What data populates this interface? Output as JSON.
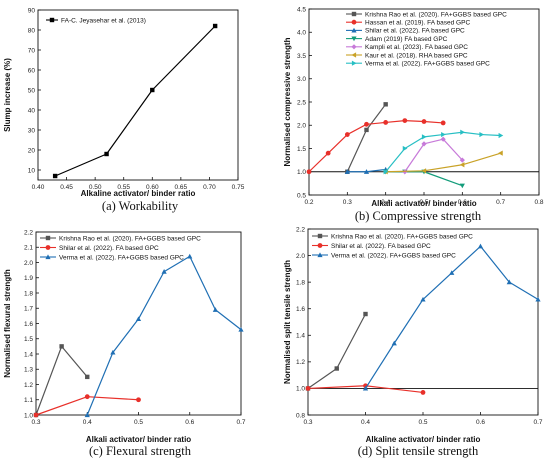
{
  "chart_data": [
    {
      "type": "line",
      "caption": "(a) Workability",
      "xlabel": "Alkaline activator/ binder ratio",
      "ylabel": "Slump increase (%)",
      "xlim": [
        0.4,
        0.75
      ],
      "ylim": [
        5,
        90
      ],
      "xticks": [
        "0.40",
        "0.45",
        "0.50",
        "0.55",
        "0.60",
        "0.65",
        "0.70",
        "0.75"
      ],
      "yticks": [
        "10",
        "20",
        "30",
        "40",
        "50",
        "60",
        "70",
        "80",
        "90"
      ],
      "legend_position": "top-left",
      "series": [
        {
          "name": "FA-C. Jeyasehar et al. (2013)",
          "color": "#000000",
          "marker": "square",
          "x": [
            0.43,
            0.52,
            0.6,
            0.71
          ],
          "y": [
            7,
            18,
            50,
            82
          ]
        }
      ]
    },
    {
      "type": "line",
      "caption": "(b) Compressive strength",
      "xlabel": "Alkali activator/ binder ratio",
      "ylabel": "Normalised compressive strength",
      "xlim": [
        0.2,
        0.8
      ],
      "ylim": [
        0.5,
        4.5
      ],
      "xticks": [
        "0.2",
        "0.3",
        "0.4",
        "0.5",
        "0.6",
        "0.7",
        "0.8"
      ],
      "yticks": [
        "0.5",
        "1.0",
        "1.5",
        "2.0",
        "2.5",
        "3.0",
        "3.5",
        "4.0",
        "4.5"
      ],
      "reference_line": 1.0,
      "legend_position": "top-right",
      "series": [
        {
          "name": "Krishna Rao et al. (2020). FA+GGBS based GPC",
          "color": "#555555",
          "marker": "square",
          "x": [
            0.3,
            0.35,
            0.4
          ],
          "y": [
            1.0,
            1.9,
            2.45
          ]
        },
        {
          "name": "Hassan et al. (2019). FA based GPC",
          "color": "#e8302a",
          "marker": "circle",
          "x": [
            0.2,
            0.25,
            0.3,
            0.35,
            0.4,
            0.45,
            0.5,
            0.55
          ],
          "y": [
            1.0,
            1.4,
            1.8,
            2.02,
            2.06,
            2.1,
            2.08,
            2.05
          ]
        },
        {
          "name": "Shilar et al. (2022). FA based GPC",
          "color": "#1f6fb4",
          "marker": "triangle-up",
          "x": [
            0.3,
            0.35,
            0.4
          ],
          "y": [
            1.0,
            1.0,
            1.05
          ]
        },
        {
          "name": "Adam (2019)  FA based GPC",
          "color": "#139c7a",
          "marker": "triangle-down",
          "x": [
            0.4,
            0.45,
            0.5,
            0.6
          ],
          "y": [
            1.0,
            1.0,
            1.0,
            0.7
          ]
        },
        {
          "name": "Kampli et al. (2023). FA based GPC",
          "color": "#c77ad9",
          "marker": "diamond",
          "x": [
            0.45,
            0.5,
            0.55,
            0.6
          ],
          "y": [
            1.0,
            1.6,
            1.7,
            1.25
          ]
        },
        {
          "name": "Kaur et al. (2018). RHA based GPC",
          "color": "#c9a227",
          "marker": "triangle-left",
          "x": [
            0.4,
            0.5,
            0.6,
            0.7
          ],
          "y": [
            1.0,
            1.02,
            1.15,
            1.4
          ]
        },
        {
          "name": "Verma et al. (2022). FA+GGBS based GPC",
          "color": "#27bfc4",
          "marker": "triangle-right",
          "x": [
            0.4,
            0.45,
            0.5,
            0.55,
            0.6,
            0.65,
            0.7
          ],
          "y": [
            1.0,
            1.5,
            1.75,
            1.8,
            1.85,
            1.8,
            1.78
          ]
        }
      ]
    },
    {
      "type": "line",
      "caption": "(c) Flexural strength",
      "xlabel": "Alkali activator/ binder ratio",
      "ylabel": "Normalised flexural strength",
      "xlim": [
        0.3,
        0.7
      ],
      "ylim": [
        1.0,
        2.2
      ],
      "xticks": [
        "0.3",
        "0.4",
        "0.5",
        "0.6",
        "0.7"
      ],
      "yticks": [
        "1.0",
        "1.1",
        "1.2",
        "1.3",
        "1.4",
        "1.5",
        "1.6",
        "1.7",
        "1.8",
        "1.9",
        "2.0",
        "2.1",
        "2.2"
      ],
      "legend_position": "top-left",
      "series": [
        {
          "name": "Krishna Rao et al. (2020). FA+GGBS based GPC",
          "color": "#555555",
          "marker": "square",
          "x": [
            0.3,
            0.35,
            0.4
          ],
          "y": [
            1.0,
            1.45,
            1.25
          ]
        },
        {
          "name": "Shilar et al. (2022). FA based GPC",
          "color": "#e8302a",
          "marker": "circle",
          "x": [
            0.3,
            0.4,
            0.5
          ],
          "y": [
            1.0,
            1.12,
            1.1
          ]
        },
        {
          "name": "Verma et al. (2022). FA+GGBS based GPC",
          "color": "#1f6fb4",
          "marker": "triangle-up",
          "x": [
            0.4,
            0.45,
            0.5,
            0.55,
            0.6,
            0.65,
            0.7
          ],
          "y": [
            1.0,
            1.41,
            1.63,
            1.94,
            2.04,
            1.69,
            1.56
          ]
        }
      ]
    },
    {
      "type": "line",
      "caption": "(d) Split tensile strength",
      "xlabel": "Alkaline activator/ binder ratio",
      "ylabel": "Normalised split tensile strength",
      "xlim": [
        0.3,
        0.7
      ],
      "ylim": [
        0.8,
        2.2
      ],
      "xticks": [
        "0.3",
        "0.4",
        "0.5",
        "0.6",
        "0.7"
      ],
      "yticks": [
        "0.8",
        "1.0",
        "1.2",
        "1.4",
        "1.6",
        "1.8",
        "2.0",
        "2.2"
      ],
      "reference_line": 1.0,
      "legend_position": "top-left",
      "series": [
        {
          "name": "Krishna Rao et al. (2020). FA+GGBS based GPC",
          "color": "#555555",
          "marker": "square",
          "x": [
            0.3,
            0.35,
            0.4
          ],
          "y": [
            1.0,
            1.15,
            1.56
          ]
        },
        {
          "name": "Shilar et al. (2022). FA based GPC",
          "color": "#e8302a",
          "marker": "circle",
          "x": [
            0.3,
            0.4,
            0.5
          ],
          "y": [
            1.0,
            1.02,
            0.97
          ]
        },
        {
          "name": "Verma et al. (2022). FA+GGBS based GPC",
          "color": "#1f6fb4",
          "marker": "triangle-up",
          "x": [
            0.4,
            0.45,
            0.5,
            0.55,
            0.6,
            0.65,
            0.7
          ],
          "y": [
            1.0,
            1.34,
            1.67,
            1.87,
            2.07,
            1.8,
            1.67
          ]
        }
      ]
    }
  ]
}
